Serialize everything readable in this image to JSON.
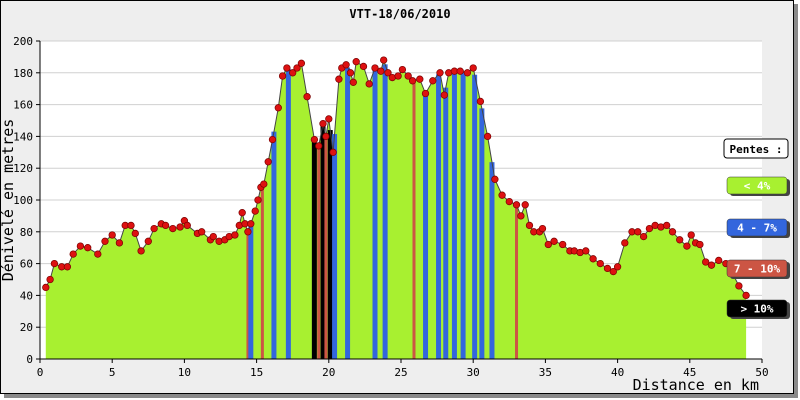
{
  "chart_data": {
    "type": "area",
    "title": "VTT-18/06/2010",
    "xlabel": "Distance en km",
    "ylabel": "Dénivelé en metres",
    "xlim": [
      0,
      50
    ],
    "ylim": [
      0,
      200
    ],
    "xticks": [
      0,
      5,
      10,
      15,
      20,
      25,
      30,
      35,
      40,
      45,
      50
    ],
    "yticks": [
      0,
      20,
      40,
      60,
      80,
      100,
      120,
      140,
      160,
      180,
      200
    ],
    "grid": "horizontal",
    "legend_position": "right",
    "legend_title": "Pentes :",
    "legend": [
      {
        "label": "< 4%",
        "color": "#a8f030"
      },
      {
        "label": "4 - 7%",
        "color": "#3366dd"
      },
      {
        "label": "7 - 10%",
        "color": "#cc5544"
      },
      {
        "label": "> 10%",
        "color": "#000000"
      }
    ],
    "fill_color": "#a8f030",
    "line_color": "#444444",
    "point_color": "#dd1111",
    "profile": [
      [
        0.4,
        45
      ],
      [
        0.7,
        50
      ],
      [
        1.0,
        60
      ],
      [
        1.5,
        58
      ],
      [
        1.9,
        58
      ],
      [
        2.3,
        66
      ],
      [
        2.8,
        71
      ],
      [
        3.3,
        70
      ],
      [
        4.0,
        66
      ],
      [
        4.5,
        74
      ],
      [
        5.0,
        78
      ],
      [
        5.5,
        73
      ],
      [
        5.9,
        84
      ],
      [
        6.3,
        84
      ],
      [
        6.6,
        79
      ],
      [
        7.0,
        68
      ],
      [
        7.5,
        74
      ],
      [
        7.9,
        82
      ],
      [
        8.4,
        85
      ],
      [
        8.7,
        84
      ],
      [
        9.2,
        82
      ],
      [
        9.7,
        83
      ],
      [
        10.0,
        87
      ],
      [
        10.2,
        84
      ],
      [
        10.9,
        79
      ],
      [
        11.2,
        80
      ],
      [
        11.8,
        75
      ],
      [
        12.0,
        77
      ],
      [
        12.4,
        74
      ],
      [
        12.8,
        75
      ],
      [
        13.1,
        77
      ],
      [
        13.5,
        78
      ],
      [
        13.8,
        84
      ],
      [
        14.0,
        92
      ],
      [
        14.2,
        85
      ],
      [
        14.4,
        80
      ],
      [
        14.6,
        85
      ],
      [
        14.9,
        93
      ],
      [
        15.1,
        100
      ],
      [
        15.3,
        108
      ],
      [
        15.5,
        110
      ],
      [
        15.8,
        124
      ],
      [
        16.1,
        138
      ],
      [
        16.5,
        158
      ],
      [
        16.8,
        178
      ],
      [
        17.1,
        183
      ],
      [
        17.5,
        180
      ],
      [
        17.8,
        183
      ],
      [
        18.1,
        186
      ],
      [
        18.5,
        165
      ],
      [
        19.0,
        138
      ],
      [
        19.3,
        134
      ],
      [
        19.6,
        148
      ],
      [
        19.8,
        140
      ],
      [
        20.0,
        151
      ],
      [
        20.3,
        130
      ],
      [
        20.7,
        176
      ],
      [
        20.9,
        183
      ],
      [
        21.2,
        185
      ],
      [
        21.5,
        180
      ],
      [
        21.7,
        174
      ],
      [
        21.9,
        187
      ],
      [
        22.4,
        184
      ],
      [
        22.8,
        173
      ],
      [
        23.2,
        183
      ],
      [
        23.6,
        181
      ],
      [
        23.8,
        188
      ],
      [
        24.1,
        180
      ],
      [
        24.4,
        177
      ],
      [
        24.8,
        178
      ],
      [
        25.1,
        182
      ],
      [
        25.5,
        178
      ],
      [
        25.8,
        175
      ],
      [
        26.3,
        176
      ],
      [
        26.7,
        167
      ],
      [
        27.2,
        175
      ],
      [
        27.7,
        180
      ],
      [
        28.0,
        166
      ],
      [
        28.3,
        180
      ],
      [
        28.7,
        181
      ],
      [
        29.1,
        181
      ],
      [
        29.6,
        180
      ],
      [
        30.0,
        183
      ],
      [
        30.5,
        162
      ],
      [
        31.0,
        140
      ],
      [
        31.5,
        113
      ],
      [
        32.0,
        103
      ],
      [
        32.5,
        99
      ],
      [
        33.0,
        97
      ],
      [
        33.3,
        90
      ],
      [
        33.6,
        97
      ],
      [
        33.9,
        84
      ],
      [
        34.2,
        80
      ],
      [
        34.6,
        80
      ],
      [
        34.8,
        82
      ],
      [
        35.2,
        72
      ],
      [
        35.6,
        74
      ],
      [
        36.2,
        72
      ],
      [
        36.7,
        68
      ],
      [
        37.0,
        68
      ],
      [
        37.4,
        67
      ],
      [
        37.8,
        68
      ],
      [
        38.3,
        63
      ],
      [
        38.8,
        60
      ],
      [
        39.3,
        57
      ],
      [
        39.7,
        55
      ],
      [
        40.0,
        58
      ],
      [
        40.5,
        73
      ],
      [
        41.0,
        80
      ],
      [
        41.4,
        80
      ],
      [
        41.8,
        77
      ],
      [
        42.2,
        82
      ],
      [
        42.6,
        84
      ],
      [
        43.0,
        83
      ],
      [
        43.4,
        84
      ],
      [
        43.8,
        80
      ],
      [
        44.3,
        75
      ],
      [
        44.8,
        71
      ],
      [
        45.1,
        78
      ],
      [
        45.4,
        73
      ],
      [
        45.7,
        72
      ],
      [
        46.1,
        61
      ],
      [
        46.5,
        59
      ],
      [
        47.0,
        62
      ],
      [
        47.5,
        60
      ],
      [
        47.9,
        55
      ],
      [
        48.4,
        46
      ],
      [
        48.9,
        40
      ]
    ],
    "slope_bands": [
      {
        "x": 14.4,
        "category": "7 - 10%"
      },
      {
        "x": 14.6,
        "category": "4 - 7%"
      },
      {
        "x": 15.4,
        "category": "7 - 10%"
      },
      {
        "x": 16.2,
        "category": "4 - 7%"
      },
      {
        "x": 17.2,
        "category": "4 - 7%"
      },
      {
        "x": 19.0,
        "category": "> 10%"
      },
      {
        "x": 19.3,
        "category": "7 - 10%"
      },
      {
        "x": 19.6,
        "category": "> 10%"
      },
      {
        "x": 19.8,
        "category": "7 - 10%"
      },
      {
        "x": 20.1,
        "category": "> 10%"
      },
      {
        "x": 20.4,
        "category": "4 - 7%"
      },
      {
        "x": 21.3,
        "category": "4 - 7%"
      },
      {
        "x": 23.2,
        "category": "4 - 7%"
      },
      {
        "x": 23.9,
        "category": "4 - 7%"
      },
      {
        "x": 25.9,
        "category": "7 - 10%"
      },
      {
        "x": 26.7,
        "category": "4 - 7%"
      },
      {
        "x": 27.6,
        "category": "4 - 7%"
      },
      {
        "x": 28.1,
        "category": "4 - 7%"
      },
      {
        "x": 28.7,
        "category": "4 - 7%"
      },
      {
        "x": 29.3,
        "category": "4 - 7%"
      },
      {
        "x": 30.1,
        "category": "4 - 7%"
      },
      {
        "x": 30.6,
        "category": "4 - 7%"
      },
      {
        "x": 31.3,
        "category": "4 - 7%"
      },
      {
        "x": 33.0,
        "category": "7 - 10%"
      }
    ]
  }
}
